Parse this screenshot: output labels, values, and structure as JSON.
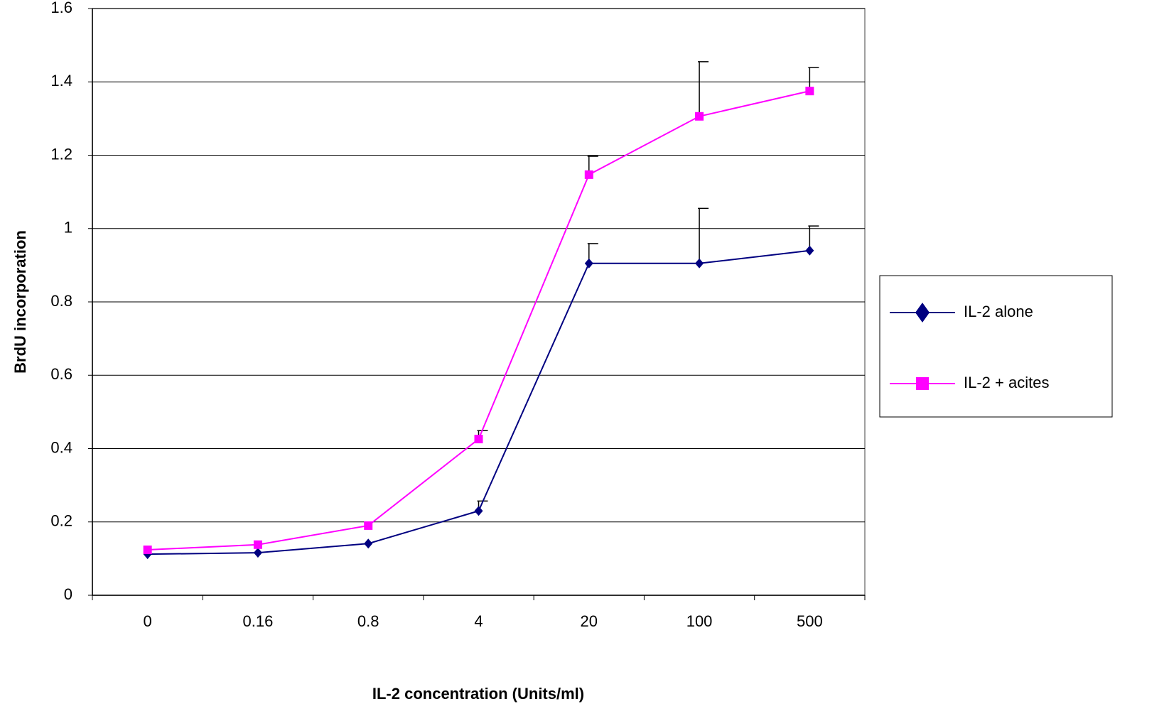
{
  "chart_data": {
    "type": "line",
    "x_label": "IL-2 concentration (Units/ml)",
    "y_label": "BrdU incorporation",
    "categories": [
      "0",
      "0.16",
      "0.8",
      "4",
      "20",
      "100",
      "500"
    ],
    "series": [
      {
        "name": "IL-2 alone",
        "color": "#000080",
        "marker": "diamond",
        "values": [
          0.112,
          0.116,
          0.141,
          0.23,
          0.905,
          0.905,
          0.94
        ],
        "errors": [
          null,
          null,
          null,
          0.027,
          0.054,
          0.15,
          0.067
        ]
      },
      {
        "name": "IL-2 + acites",
        "color": "#ff00ff",
        "marker": "square",
        "values": [
          0.124,
          0.138,
          0.19,
          0.426,
          1.147,
          1.306,
          1.375
        ],
        "errors": [
          null,
          null,
          null,
          0.023,
          0.05,
          0.149,
          0.064
        ]
      }
    ],
    "ylim": [
      0,
      1.6
    ],
    "yticks": [
      0,
      0.2,
      0.4,
      0.6,
      0.8,
      1,
      1.2,
      1.4,
      1.6
    ],
    "grid": true,
    "legend": "right"
  }
}
